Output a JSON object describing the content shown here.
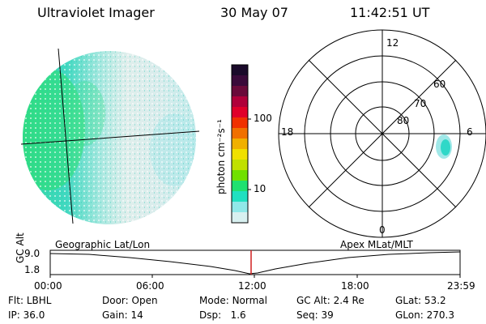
{
  "header": {
    "instrument": "Ultraviolet Imager",
    "date": "30 May 07",
    "time": "11:42:51 UT"
  },
  "colorbar": {
    "unit_label": "photon cm⁻²s⁻¹",
    "ticks": [
      "100",
      "10"
    ],
    "colors": [
      "#1a0a2a",
      "#3a0a3a",
      "#6a0a3a",
      "#b0003a",
      "#e0002a",
      "#f03000",
      "#f07000",
      "#f0b000",
      "#f0e000",
      "#c0e000",
      "#70e000",
      "#20e070",
      "#20e0c0",
      "#90e8e8",
      "#d8f0f0"
    ]
  },
  "polar_plot": {
    "mlt_labels": {
      "top": "12",
      "bottom": "0",
      "left": "18",
      "right": "6"
    },
    "lat_labels": [
      "60",
      "70",
      "80"
    ]
  },
  "orbit_panel": {
    "y_label": "GC Alt",
    "y_ticks": [
      "9.0",
      "1.8"
    ],
    "left_title": "Geographic Lat/Lon",
    "right_title": "Apex MLat/MLT",
    "x_ticks": [
      "00:00",
      "06:00",
      "12:00",
      "18:00",
      "23:59"
    ],
    "marker_color": "#d02020"
  },
  "status": {
    "row1": [
      {
        "label": "Flt:",
        "value": "LBHL"
      },
      {
        "label": "Door:",
        "value": "Open"
      },
      {
        "label": "Mode:",
        "value": "Normal"
      },
      {
        "label": "GC Alt:",
        "value": "2.4 Re"
      },
      {
        "label": "GLat:",
        "value": "53.2"
      }
    ],
    "row2": [
      {
        "label": "IP:",
        "value": "36.0"
      },
      {
        "label": "Gain:",
        "value": "14"
      },
      {
        "label": "Dsp:",
        "value": "1.6"
      },
      {
        "label": "Seq:",
        "value": "39"
      },
      {
        "label": "GLon:",
        "value": "270.3"
      }
    ]
  }
}
